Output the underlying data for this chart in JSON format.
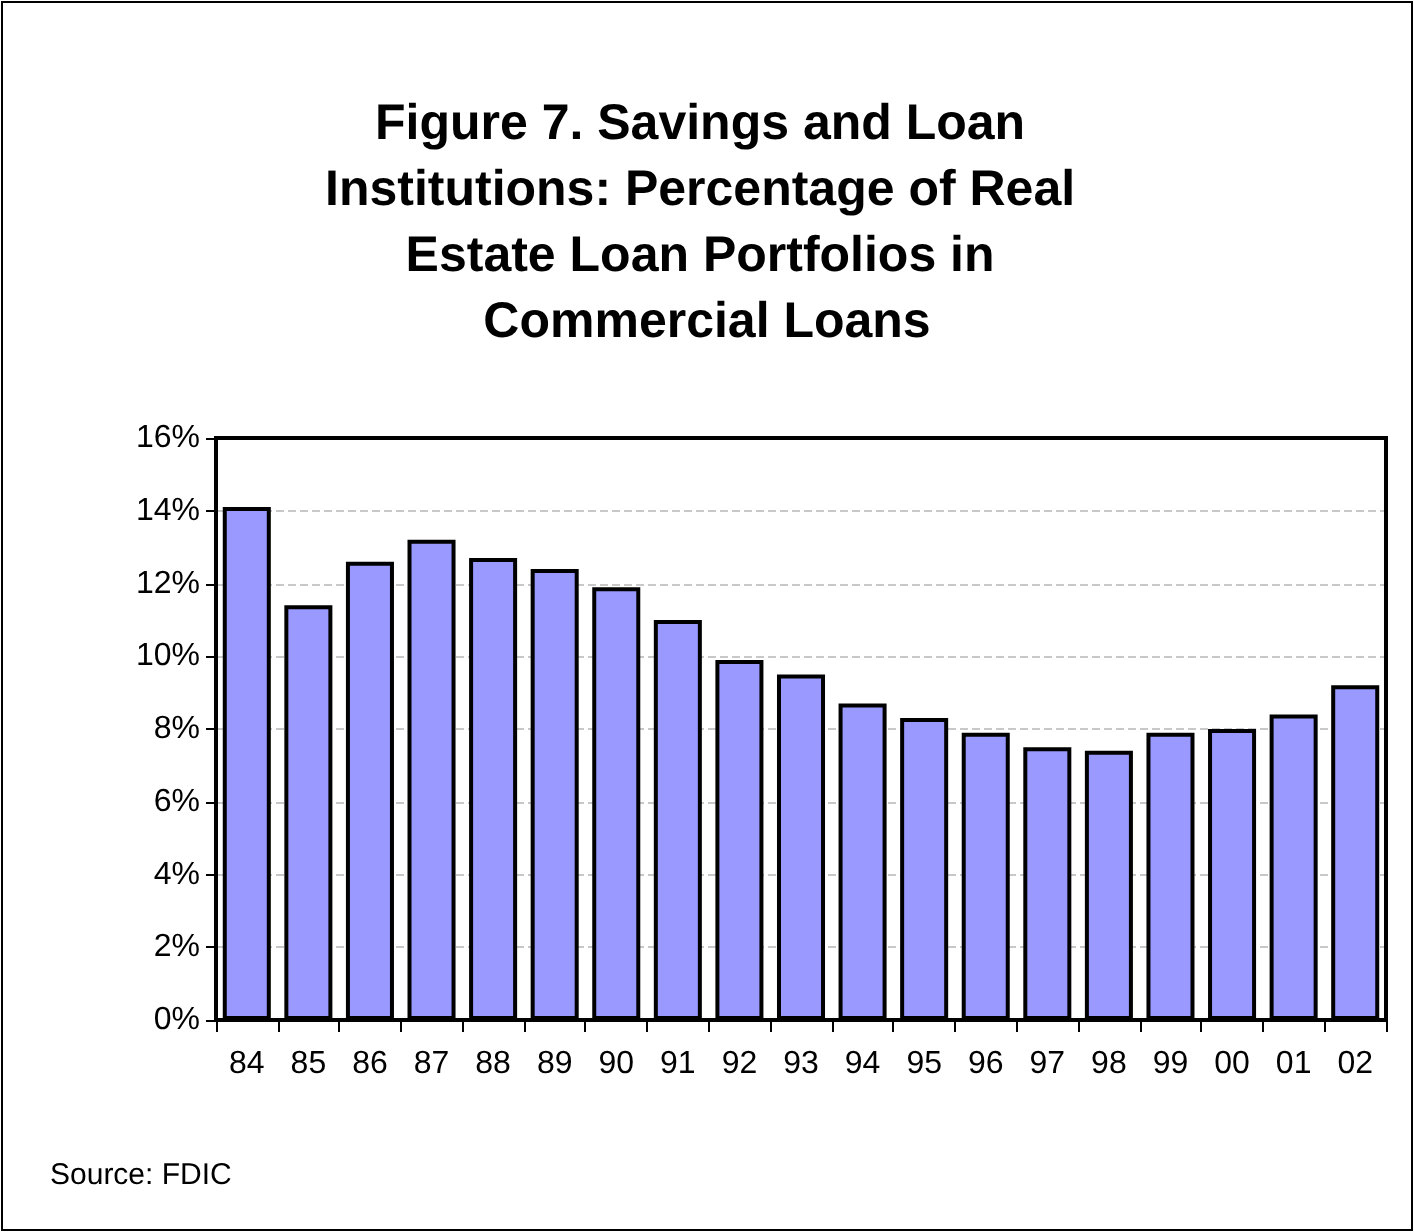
{
  "chart_data": {
    "type": "bar",
    "title": "Figure 7. Savings and Loan Institutions: Percentage of Real Estate Loan Portfolios in Commercial Loans",
    "categories": [
      "84",
      "85",
      "86",
      "87",
      "88",
      "89",
      "90",
      "91",
      "92",
      "93",
      "94",
      "95",
      "96",
      "97",
      "98",
      "99",
      "00",
      "01",
      "02"
    ],
    "values": [
      14.1,
      11.4,
      12.6,
      13.2,
      12.7,
      12.4,
      11.9,
      11.0,
      9.9,
      9.5,
      8.7,
      8.3,
      7.9,
      7.5,
      7.4,
      7.9,
      8.0,
      8.4,
      9.2
    ],
    "color": "#9999ff",
    "ylim": [
      0,
      16
    ],
    "yticks": [
      {
        "value": 0,
        "label": "0%"
      },
      {
        "value": 2,
        "label": "2%"
      },
      {
        "value": 4,
        "label": "4%"
      },
      {
        "value": 6,
        "label": "6%"
      },
      {
        "value": 8,
        "label": "8%"
      },
      {
        "value": 10,
        "label": "10%"
      },
      {
        "value": 12,
        "label": "12%"
      },
      {
        "value": 14,
        "label": "14%"
      },
      {
        "value": 16,
        "label": "16%"
      }
    ],
    "grid": "y",
    "line_style": "dashed",
    "annotations": [
      "Source: FDIC"
    ]
  }
}
